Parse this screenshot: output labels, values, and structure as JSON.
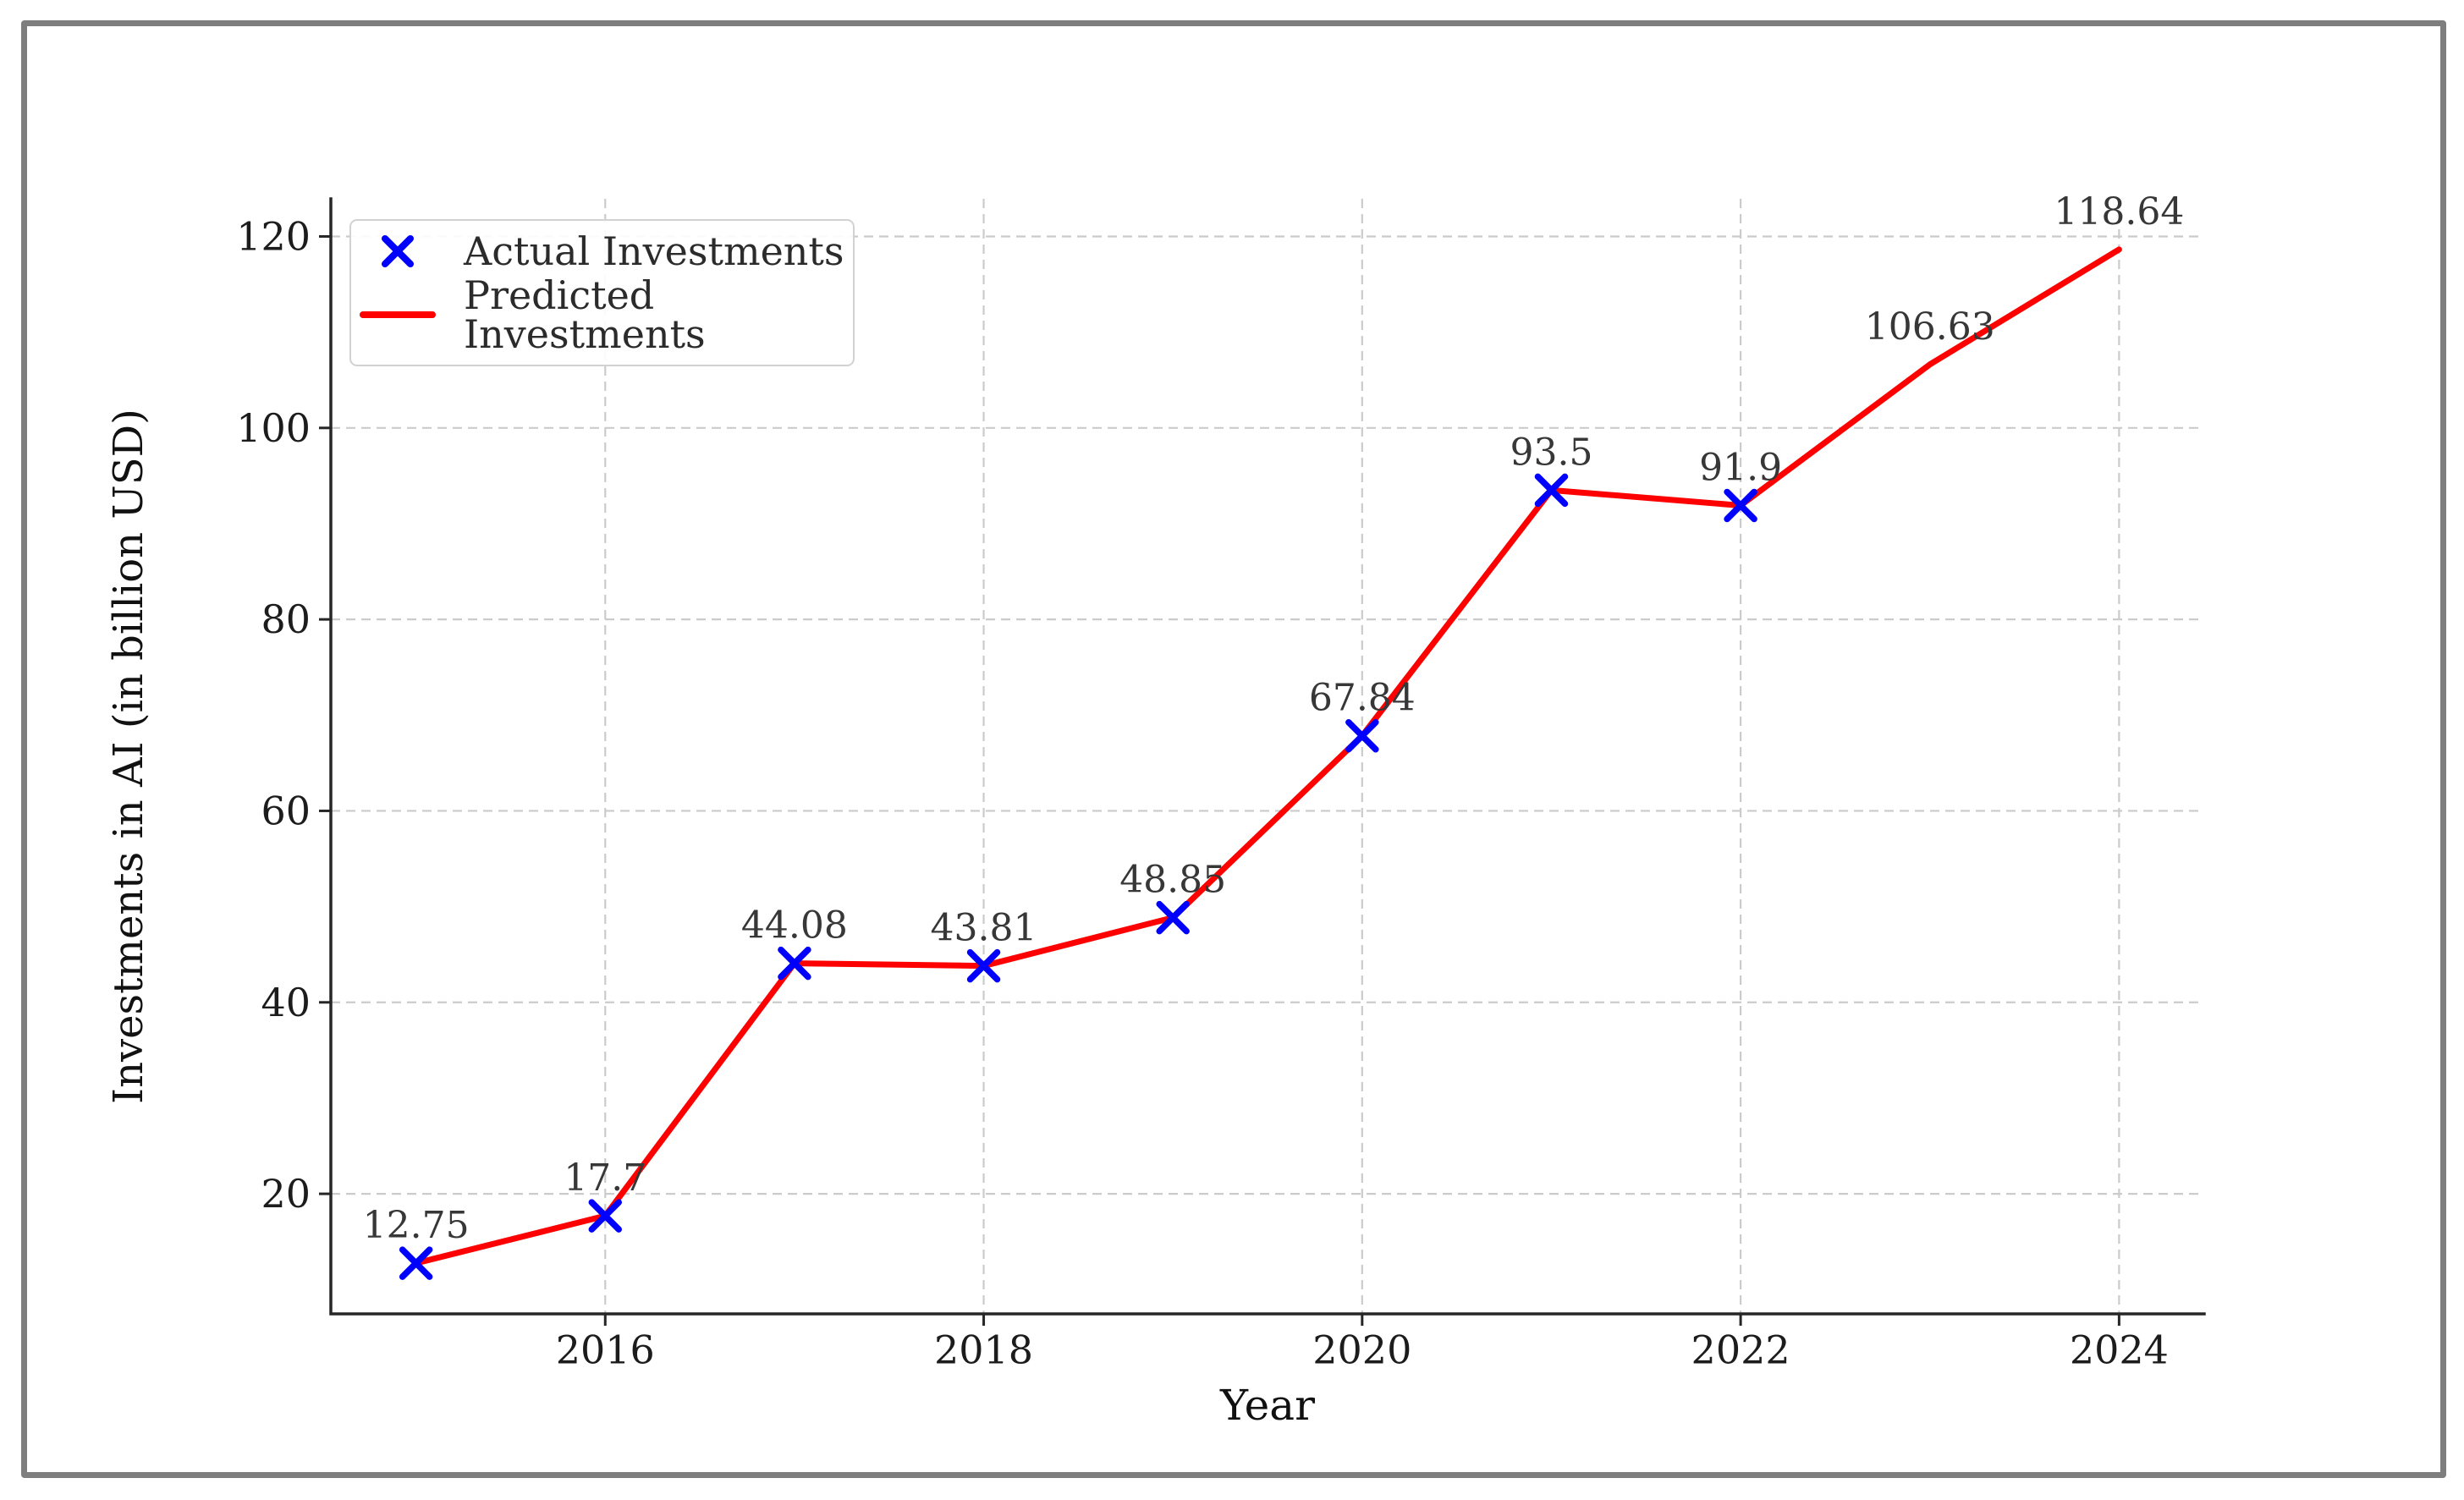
{
  "frame": {
    "border_color": "#7e7e7e",
    "background": "#ffffff"
  },
  "chart_data": {
    "type": "line",
    "xlabel": "Year",
    "ylabel": "Investments in AI (in billion USD)",
    "xlim": [
      2014.55,
      2024.45
    ],
    "ylim": [
      7.46,
      123.93
    ],
    "grid": true,
    "grid_color": "#cbcbcb",
    "xticks": {
      "values": [
        2016,
        2018,
        2020,
        2022,
        2024
      ],
      "labels": [
        "2016",
        "2018",
        "2020",
        "2022",
        "2024"
      ]
    },
    "yticks": {
      "values": [
        20,
        40,
        60,
        80,
        100,
        120
      ],
      "labels": [
        "20",
        "40",
        "60",
        "80",
        "100",
        "120"
      ]
    },
    "series": [
      {
        "name": "Actual Investments",
        "type": "scatter",
        "marker": "x",
        "color": "#0000ff",
        "x": [
          2015,
          2016,
          2017,
          2018,
          2019,
          2020,
          2021,
          2022
        ],
        "values": [
          12.75,
          17.7,
          44.08,
          43.81,
          48.85,
          67.84,
          93.5,
          91.9
        ]
      },
      {
        "name": "Predicted Investments",
        "type": "line",
        "color": "#ff0000",
        "x": [
          2015,
          2016,
          2017,
          2018,
          2019,
          2020,
          2021,
          2022,
          2023,
          2024
        ],
        "values": [
          12.75,
          17.7,
          44.08,
          43.81,
          48.85,
          67.84,
          93.5,
          91.9,
          106.63,
          118.64
        ]
      }
    ],
    "point_labels": [
      {
        "x": 2015,
        "y": 12.75,
        "text": "12.75"
      },
      {
        "x": 2016,
        "y": 17.7,
        "text": "17.7"
      },
      {
        "x": 2017,
        "y": 44.08,
        "text": "44.08"
      },
      {
        "x": 2018,
        "y": 43.81,
        "text": "43.81"
      },
      {
        "x": 2019,
        "y": 48.85,
        "text": "48.85"
      },
      {
        "x": 2020,
        "y": 67.84,
        "text": "67.84"
      },
      {
        "x": 2021,
        "y": 93.5,
        "text": "93.5"
      },
      {
        "x": 2022,
        "y": 91.9,
        "text": "91.9"
      },
      {
        "x": 2023,
        "y": 106.63,
        "text": "106.63"
      },
      {
        "x": 2024,
        "y": 118.64,
        "text": "118.64"
      }
    ],
    "legend": {
      "position": "upper-left",
      "entries": [
        {
          "label": "Actual Investments",
          "marker": "x",
          "color": "#0000ff"
        },
        {
          "label": "Predicted Investments",
          "marker": "line",
          "color": "#ff0000"
        }
      ]
    }
  }
}
